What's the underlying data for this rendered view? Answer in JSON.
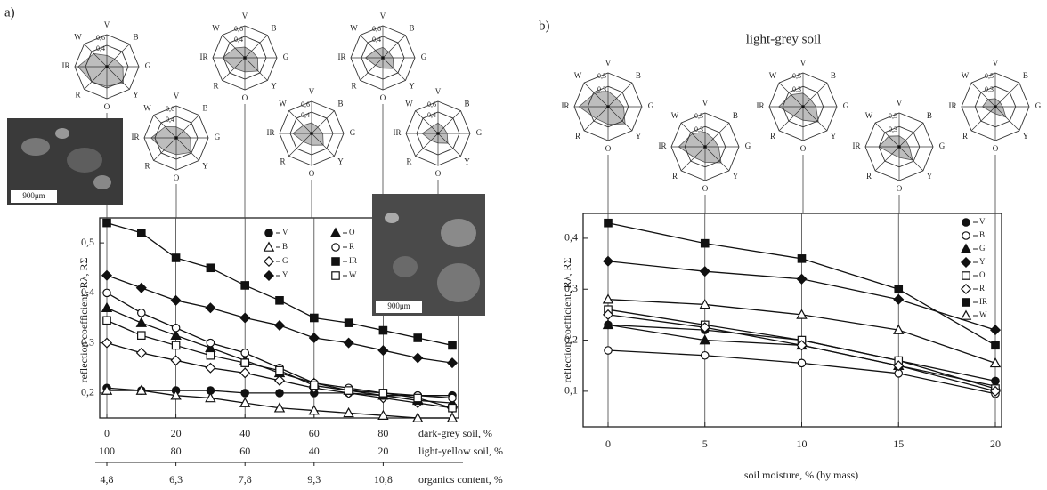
{
  "chart_data": [
    {
      "type": "line",
      "panel_label": "a)",
      "ylabel": "reflection coefficient, Rλ, RΣ",
      "xlabel": "dark-grey soil, %",
      "x2label": "light-yellow soil, %",
      "x3label": "organics content, %",
      "annotations": [
        "900μm",
        "900μm"
      ],
      "x": [
        0,
        10,
        20,
        30,
        40,
        50,
        60,
        70,
        80,
        90,
        100
      ],
      "xlim": [
        0,
        100
      ],
      "xticks": [
        0,
        20,
        40,
        60,
        80
      ],
      "x2lim": [
        100,
        0
      ],
      "x2ticks": [
        100,
        80,
        60,
        40,
        20
      ],
      "x3lim": [
        4.8,
        12.3
      ],
      "x3ticks": [
        {
          "value": 4.8,
          "label": "4,8"
        },
        {
          "value": 6.3,
          "label": "6,3"
        },
        {
          "value": 7.8,
          "label": "7,8"
        },
        {
          "value": 9.3,
          "label": "9,3"
        },
        {
          "value": 10.8,
          "label": "10,8"
        }
      ],
      "ylim": [
        0.15,
        0.55
      ],
      "yticks": [
        {
          "value": 0.2,
          "label": "0,2"
        },
        {
          "value": 0.3,
          "label": "0,3"
        },
        {
          "value": 0.4,
          "label": "0,4"
        },
        {
          "value": 0.5,
          "label": "0,5"
        }
      ],
      "grid": "x",
      "legend": "upper center",
      "series": [
        {
          "name": "V",
          "color": "#111111",
          "marker": "circle",
          "filled": true,
          "values": [
            0.21,
            0.205,
            0.205,
            0.205,
            0.2,
            0.2,
            0.2,
            0.2,
            0.195,
            0.195,
            0.195
          ]
        },
        {
          "name": "B",
          "color": "#111111",
          "marker": "triangle",
          "filled": false,
          "values": [
            0.205,
            0.205,
            0.195,
            0.19,
            0.18,
            0.17,
            0.165,
            0.16,
            0.155,
            0.15,
            0.15
          ]
        },
        {
          "name": "G",
          "color": "#111111",
          "marker": "diamond",
          "filled": false,
          "values": [
            0.3,
            0.28,
            0.265,
            0.25,
            0.24,
            0.225,
            0.21,
            0.2,
            0.19,
            0.18,
            0.17
          ]
        },
        {
          "name": "Y",
          "color": "#111111",
          "marker": "diamond",
          "filled": true,
          "values": [
            0.435,
            0.41,
            0.385,
            0.37,
            0.35,
            0.335,
            0.31,
            0.3,
            0.285,
            0.27,
            0.26
          ]
        },
        {
          "name": "O",
          "color": "#111111",
          "marker": "triangle",
          "filled": true,
          "values": [
            0.37,
            0.34,
            0.315,
            0.29,
            0.265,
            0.24,
            0.22,
            0.205,
            0.195,
            0.185,
            0.18
          ]
        },
        {
          "name": "R",
          "color": "#111111",
          "marker": "circle",
          "filled": false,
          "values": [
            0.4,
            0.36,
            0.33,
            0.3,
            0.28,
            0.25,
            0.22,
            0.21,
            0.2,
            0.195,
            0.19
          ]
        },
        {
          "name": "IR",
          "color": "#111111",
          "marker": "square",
          "filled": true,
          "values": [
            0.54,
            0.52,
            0.47,
            0.45,
            0.415,
            0.385,
            0.35,
            0.34,
            0.325,
            0.31,
            0.295
          ]
        },
        {
          "name": "W",
          "color": "#111111",
          "marker": "square",
          "filled": false,
          "values": [
            0.345,
            0.315,
            0.295,
            0.275,
            0.26,
            0.245,
            0.215,
            0.205,
            0.2,
            0.19,
            0.17
          ]
        }
      ]
    },
    {
      "type": "line",
      "panel_label": "b)",
      "title": "light-grey soil",
      "ylabel": "reflection coefficient, Rλ, RΣ",
      "xlabel": "soil moisture, % (by mass)",
      "x": [
        0,
        5,
        10,
        15,
        20
      ],
      "xlim": [
        0,
        20
      ],
      "xticks": [
        0,
        5,
        10,
        15,
        20
      ],
      "ylim": [
        0.03,
        0.44
      ],
      "yticks": [
        {
          "value": 0.1,
          "label": "0,1"
        },
        {
          "value": 0.2,
          "label": "0,2"
        },
        {
          "value": 0.3,
          "label": "0,3"
        },
        {
          "value": 0.4,
          "label": "0,4"
        }
      ],
      "grid": "x",
      "legend": "right",
      "series": [
        {
          "name": "V",
          "color": "#111111",
          "marker": "circle",
          "filled": true,
          "values": [
            0.23,
            0.22,
            0.2,
            0.16,
            0.12
          ]
        },
        {
          "name": "B",
          "color": "#111111",
          "marker": "circle",
          "filled": false,
          "values": [
            0.18,
            0.17,
            0.155,
            0.135,
            0.095
          ]
        },
        {
          "name": "G",
          "color": "#111111",
          "marker": "triangle",
          "filled": true,
          "values": [
            0.23,
            0.2,
            0.19,
            0.15,
            0.11
          ]
        },
        {
          "name": "Y",
          "color": "#111111",
          "marker": "diamond",
          "filled": true,
          "values": [
            0.355,
            0.335,
            0.32,
            0.28,
            0.22
          ]
        },
        {
          "name": "O",
          "color": "#111111",
          "marker": "square",
          "filled": false,
          "values": [
            0.26,
            0.23,
            0.2,
            0.16,
            0.105
          ]
        },
        {
          "name": "R",
          "color": "#111111",
          "marker": "diamond",
          "filled": false,
          "values": [
            0.25,
            0.225,
            0.19,
            0.15,
            0.1
          ]
        },
        {
          "name": "IR",
          "color": "#111111",
          "marker": "square",
          "filled": true,
          "values": [
            0.43,
            0.39,
            0.36,
            0.3,
            0.19
          ]
        },
        {
          "name": "W",
          "color": "#111111",
          "marker": "triangle",
          "filled": false,
          "values": [
            0.28,
            0.27,
            0.25,
            0.22,
            0.155
          ]
        }
      ]
    },
    {
      "type": "radar",
      "axes": [
        "V",
        "B",
        "G",
        "Y",
        "O",
        "R",
        "IR",
        "W"
      ],
      "rlim": [
        0,
        0.6
      ],
      "rticks": [
        {
          "value": 0.4,
          "label": "0,4"
        },
        {
          "value": 0.6,
          "label": "0,6"
        }
      ],
      "color": "#bdbdbd",
      "values": [
        0.21,
        0.205,
        0.3,
        0.435,
        0.37,
        0.4,
        0.54,
        0.345
      ]
    },
    {
      "type": "radar",
      "axes": [
        "V",
        "B",
        "G",
        "Y",
        "O",
        "R",
        "IR",
        "W"
      ],
      "rlim": [
        0,
        0.6
      ],
      "rticks": [
        {
          "value": 0.4,
          "label": "0,4"
        },
        {
          "value": 0.6,
          "label": "0,6"
        }
      ],
      "color": "#bdbdbd",
      "values": [
        0.205,
        0.195,
        0.265,
        0.385,
        0.315,
        0.33,
        0.47,
        0.295
      ]
    },
    {
      "type": "radar",
      "axes": [
        "V",
        "B",
        "G",
        "Y",
        "O",
        "R",
        "IR",
        "W"
      ],
      "rlim": [
        0,
        0.6
      ],
      "rticks": [
        {
          "value": 0.4,
          "label": "0,4"
        },
        {
          "value": 0.6,
          "label": "0,6"
        }
      ],
      "color": "#bdbdbd",
      "values": [
        0.2,
        0.18,
        0.24,
        0.35,
        0.265,
        0.28,
        0.415,
        0.26
      ]
    },
    {
      "type": "radar",
      "axes": [
        "V",
        "B",
        "G",
        "Y",
        "O",
        "R",
        "IR",
        "W"
      ],
      "rlim": [
        0,
        0.6
      ],
      "rticks": [
        {
          "value": 0.4,
          "label": "0,4"
        },
        {
          "value": 0.6,
          "label": "0,6"
        }
      ],
      "color": "#bdbdbd",
      "values": [
        0.2,
        0.165,
        0.21,
        0.31,
        0.22,
        0.22,
        0.35,
        0.215
      ]
    },
    {
      "type": "radar",
      "axes": [
        "V",
        "B",
        "G",
        "Y",
        "O",
        "R",
        "IR",
        "W"
      ],
      "rlim": [
        0,
        0.6
      ],
      "rticks": [
        {
          "value": 0.4,
          "label": "0,4"
        },
        {
          "value": 0.6,
          "label": "0,6"
        }
      ],
      "color": "#bdbdbd",
      "values": [
        0.195,
        0.155,
        0.19,
        0.285,
        0.195,
        0.2,
        0.325,
        0.2
      ]
    },
    {
      "type": "radar",
      "axes": [
        "V",
        "B",
        "G",
        "Y",
        "O",
        "R",
        "IR",
        "W"
      ],
      "rlim": [
        0,
        0.6
      ],
      "rticks": [
        {
          "value": 0.4,
          "label": "0,4"
        },
        {
          "value": 0.6,
          "label": "0,6"
        }
      ],
      "color": "#bdbdbd",
      "values": [
        0.195,
        0.15,
        0.17,
        0.26,
        0.18,
        0.19,
        0.295,
        0.17
      ]
    },
    {
      "type": "radar",
      "axes": [
        "V",
        "B",
        "G",
        "Y",
        "O",
        "R",
        "IR",
        "W"
      ],
      "rlim": [
        0,
        0.5
      ],
      "rticks": [
        {
          "value": 0.3,
          "label": "0,3"
        },
        {
          "value": 0.5,
          "label": "0,5"
        }
      ],
      "color": "#bdbdbd",
      "values": [
        0.23,
        0.18,
        0.23,
        0.355,
        0.26,
        0.25,
        0.43,
        0.28
      ]
    },
    {
      "type": "radar",
      "axes": [
        "V",
        "B",
        "G",
        "Y",
        "O",
        "R",
        "IR",
        "W"
      ],
      "rlim": [
        0,
        0.5
      ],
      "rticks": [
        {
          "value": 0.3,
          "label": "0,3"
        },
        {
          "value": 0.5,
          "label": "0,5"
        }
      ],
      "color": "#bdbdbd",
      "values": [
        0.22,
        0.17,
        0.2,
        0.335,
        0.23,
        0.225,
        0.39,
        0.27
      ]
    },
    {
      "type": "radar",
      "axes": [
        "V",
        "B",
        "G",
        "Y",
        "O",
        "R",
        "IR",
        "W"
      ],
      "rlim": [
        0,
        0.5
      ],
      "rticks": [
        {
          "value": 0.3,
          "label": "0,3"
        },
        {
          "value": 0.5,
          "label": "0,5"
        }
      ],
      "color": "#bdbdbd",
      "values": [
        0.2,
        0.155,
        0.19,
        0.32,
        0.2,
        0.19,
        0.36,
        0.25
      ]
    },
    {
      "type": "radar",
      "axes": [
        "V",
        "B",
        "G",
        "Y",
        "O",
        "R",
        "IR",
        "W"
      ],
      "rlim": [
        0,
        0.5
      ],
      "rticks": [
        {
          "value": 0.3,
          "label": "0,3"
        },
        {
          "value": 0.5,
          "label": "0,5"
        }
      ],
      "color": "#bdbdbd",
      "values": [
        0.16,
        0.135,
        0.15,
        0.28,
        0.16,
        0.15,
        0.3,
        0.22
      ]
    },
    {
      "type": "radar",
      "axes": [
        "V",
        "B",
        "G",
        "Y",
        "O",
        "R",
        "IR",
        "W"
      ],
      "rlim": [
        0,
        0.5
      ],
      "rticks": [
        {
          "value": 0.3,
          "label": "0,3"
        },
        {
          "value": 0.5,
          "label": "0,5"
        }
      ],
      "color": "#bdbdbd",
      "values": [
        0.12,
        0.095,
        0.11,
        0.22,
        0.105,
        0.1,
        0.19,
        0.155
      ]
    }
  ]
}
